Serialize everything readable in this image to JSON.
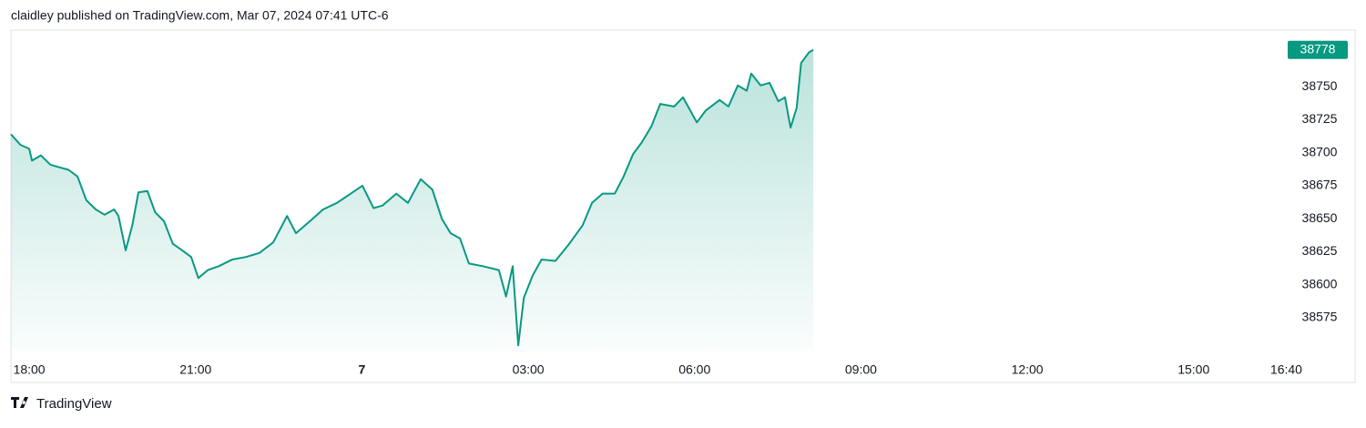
{
  "header": "claidley published on TradingView.com, Mar 07, 2024 07:41 UTC-6",
  "footer": "TradingView",
  "chart_data": {
    "type": "area",
    "color": "#089981",
    "x": [
      -0.33,
      -0.16,
      0,
      0.05,
      0.21,
      0.38,
      0.54,
      0.71,
      0.87,
      1.03,
      1.2,
      1.36,
      1.53,
      1.61,
      1.74,
      1.86,
      1.97,
      2.13,
      2.27,
      2.43,
      2.59,
      2.76,
      2.92,
      3.05,
      3.22,
      3.42,
      3.66,
      3.91,
      4.15,
      4.4,
      4.65,
      4.81,
      5.06,
      5.3,
      5.55,
      5.8,
      6.01,
      6.21,
      6.37,
      6.62,
      6.83,
      7.06,
      7.27,
      7.44,
      7.6,
      7.77,
      7.93,
      8.18,
      8.47,
      8.6,
      8.72,
      8.82,
      8.92,
      9.08,
      9.24,
      9.49,
      9.74,
      9.98,
      10.15,
      10.34,
      10.56,
      10.72,
      10.89,
      11.05,
      11.22,
      11.38,
      11.63,
      11.79,
      12.04,
      12.2,
      12.45,
      12.61,
      12.78,
      12.94,
      13.02,
      13.19,
      13.35,
      13.51,
      13.63,
      13.73,
      13.84,
      13.92,
      14.06,
      14.14
    ],
    "values": [
      38714,
      38706,
      38703,
      38694,
      38698,
      38691,
      38689,
      38687,
      38682,
      38664,
      38657,
      38653,
      38657,
      38652,
      38626,
      38645,
      38670,
      38671,
      38655,
      38648,
      38631,
      38626,
      38621,
      38605,
      38611,
      38614,
      38619,
      38621,
      38624,
      38632,
      38652,
      38639,
      38648,
      38657,
      38662,
      38669,
      38675,
      38658,
      38660,
      38669,
      38662,
      38680,
      38672,
      38650,
      38639,
      38635,
      38616,
      38614,
      38611,
      38591,
      38614,
      38554,
      38590,
      38607,
      38619,
      38618,
      38631,
      38645,
      38662,
      38669,
      38669,
      38682,
      38699,
      38708,
      38720,
      38737,
      38735,
      38742,
      38723,
      38732,
      38740,
      38735,
      38751,
      38747,
      38760,
      38751,
      38753,
      38739,
      38742,
      38719,
      38734,
      38768,
      38776,
      38778
    ],
    "last_price": 38778,
    "xlim": [
      -0.33,
      22.63
    ],
    "ylim": [
      38550,
      38793
    ],
    "xticks": [
      {
        "value": 0,
        "label": "18:00"
      },
      {
        "value": 3,
        "label": "21:00"
      },
      {
        "value": 6,
        "label": "7"
      },
      {
        "value": 9,
        "label": "03:00"
      },
      {
        "value": 12,
        "label": "06:00"
      },
      {
        "value": 15,
        "label": "09:00"
      },
      {
        "value": 18,
        "label": "12:00"
      },
      {
        "value": 21,
        "label": "15:00"
      },
      {
        "value": 22.67,
        "label": "16:40"
      }
    ],
    "yticks": [
      38575,
      38600,
      38625,
      38650,
      38675,
      38700,
      38725,
      38750
    ]
  }
}
